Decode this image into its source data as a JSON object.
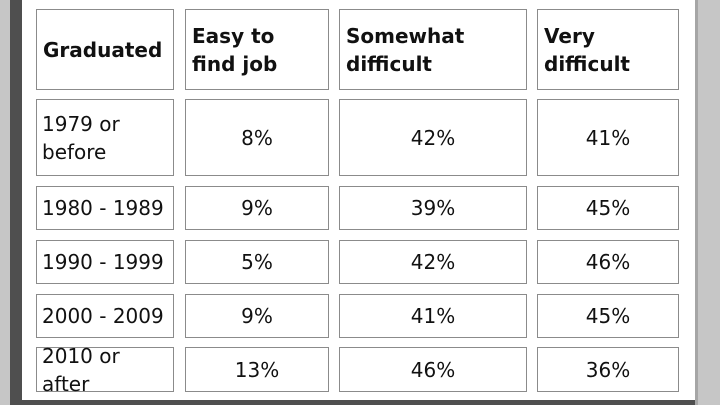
{
  "table": {
    "headers": [
      "Graduated",
      "Easy to find job",
      "Somewhat difficult",
      "Very difficult"
    ],
    "rows": [
      {
        "label": "1979 or before",
        "values": [
          "8%",
          "42%",
          "41%"
        ]
      },
      {
        "label": "1980 - 1989",
        "values": [
          "9%",
          "39%",
          "45%"
        ]
      },
      {
        "label": "1990 - 1999",
        "values": [
          "5%",
          "42%",
          "46%"
        ]
      },
      {
        "label": "2000 - 2009",
        "values": [
          "9%",
          "41%",
          "45%"
        ]
      },
      {
        "label": "2010 or after",
        "values": [
          "13%",
          "46%",
          "36%"
        ]
      }
    ]
  }
}
